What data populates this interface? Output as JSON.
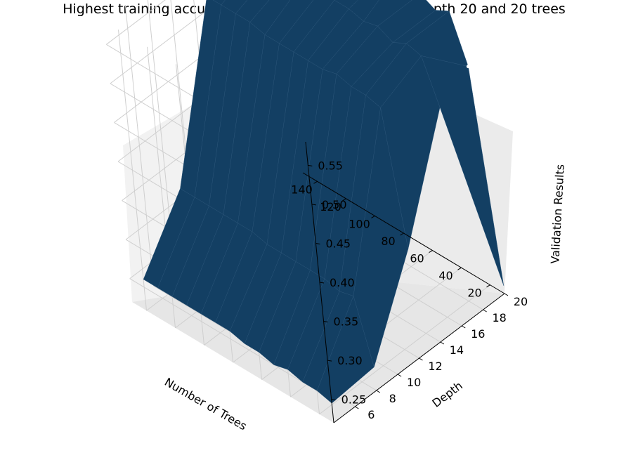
{
  "chart_data": {
    "type": "surface3d",
    "title": "Highest training accuracy: 0.7491421133593658, at depth 20 and 20 trees",
    "xlabel": "Number of Trees",
    "ylabel": "Depth",
    "zlabel": "Validation Results",
    "x_ticks": [
      "20",
      "40",
      "60",
      "80",
      "100",
      "120",
      "140"
    ],
    "y_ticks": [
      "6",
      "8",
      "10",
      "12",
      "14",
      "16",
      "18",
      "20"
    ],
    "z_ticks": [
      "0.25",
      "0.30",
      "0.35",
      "0.40",
      "0.45",
      "0.50",
      "0.55"
    ],
    "xlim": [
      10,
      150
    ],
    "ylim": [
      4,
      20
    ],
    "zlim": [
      0.22,
      0.58
    ],
    "grid": true,
    "surface_color": "#133f63",
    "marker_color": "#ffffff",
    "trees": [
      10,
      20,
      30,
      40,
      50,
      60,
      70,
      80,
      90,
      100,
      110,
      120,
      130,
      140
    ],
    "depths": [
      4,
      8,
      12,
      16,
      20
    ],
    "validation_results": [
      [
        0.245,
        0.25,
        0.25,
        0.255,
        0.25,
        0.255,
        0.255,
        0.26,
        0.26,
        0.26,
        0.26,
        0.26,
        0.26,
        0.26
      ],
      [
        0.25,
        0.33,
        0.325,
        0.33,
        0.33,
        0.33,
        0.33,
        0.33,
        0.335,
        0.335,
        0.335,
        0.335,
        0.335,
        0.335
      ],
      [
        0.36,
        0.53,
        0.535,
        0.535,
        0.54,
        0.535,
        0.535,
        0.535,
        0.535,
        0.535,
        0.54,
        0.54,
        0.54,
        0.54
      ],
      [
        0.5,
        0.555,
        0.56,
        0.55,
        0.56,
        0.555,
        0.56,
        0.56,
        0.56,
        0.565,
        0.56,
        0.56,
        0.565,
        0.565
      ],
      [
        0.23,
        0.5,
        0.56,
        0.55,
        0.56,
        0.585,
        0.57,
        0.57,
        0.58,
        0.58,
        0.58,
        0.58,
        0.58,
        0.58
      ]
    ],
    "highlight_point": {
      "trees": 20,
      "depth": 20,
      "value": 0.5
    }
  }
}
